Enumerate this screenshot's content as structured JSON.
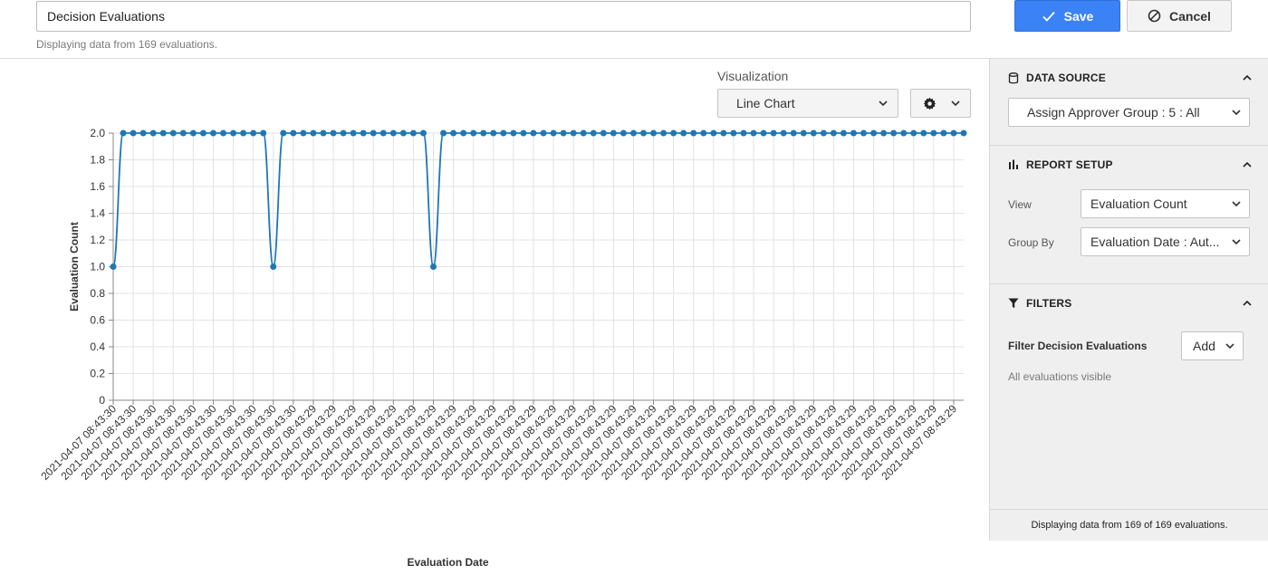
{
  "header": {
    "report_name": "Decision Evaluations",
    "subtitle": "Displaying data from 169 evaluations.",
    "save_label": "Save",
    "cancel_label": "Cancel"
  },
  "visualization": {
    "label": "Visualization",
    "selected": "Line Chart",
    "settings_icon": "gear-icon"
  },
  "sidebar": {
    "data_source": {
      "title": "DATA SOURCE",
      "icon": "database-icon",
      "selected": "Assign Approver Group : 5 : All"
    },
    "report_setup": {
      "title": "REPORT SETUP",
      "icon": "bar-chart-icon",
      "view_label": "View",
      "view_value": "Evaluation Count",
      "group_by_label": "Group By",
      "group_by_value": "Evaluation Date : Aut..."
    },
    "filters": {
      "title": "FILTERS",
      "icon": "filter-icon",
      "filter_label": "Filter Decision Evaluations",
      "add_label": "Add",
      "status": "All evaluations visible"
    },
    "footer": "Displaying data from 169 of 169 evaluations."
  },
  "chart_data": {
    "type": "line",
    "xlabel": "Evaluation Date",
    "ylabel": "Evaluation Count",
    "ylim": [
      0,
      2.0
    ],
    "yticks": [
      "0",
      "0.2",
      "0.4",
      "0.6",
      "0.8",
      "1.0",
      "1.2",
      "1.4",
      "1.6",
      "1.8",
      "2.0"
    ],
    "grid": true,
    "categories": [
      "2021-04-07 08:43:30",
      "2021-04-07 08:43:30",
      "2021-04-07 08:43:30",
      "2021-04-07 08:43:30",
      "2021-04-07 08:43:30",
      "2021-04-07 08:43:30",
      "2021-04-07 08:43:30",
      "2021-04-07 08:43:30",
      "2021-04-07 08:43:30",
      "2021-04-07 08:43:30",
      "2021-04-07 08:43:30",
      "2021-04-07 08:43:30",
      "2021-04-07 08:43:30",
      "2021-04-07 08:43:30",
      "2021-04-07 08:43:30",
      "2021-04-07 08:43:30",
      "2021-04-07 08:43:30",
      "2021-04-07 08:43:30",
      "2021-04-07 08:43:30",
      "2021-04-07 08:43:30",
      "2021-04-07 08:43:29",
      "2021-04-07 08:43:29",
      "2021-04-07 08:43:29",
      "2021-04-07 08:43:29",
      "2021-04-07 08:43:29",
      "2021-04-07 08:43:29",
      "2021-04-07 08:43:29",
      "2021-04-07 08:43:29",
      "2021-04-07 08:43:29",
      "2021-04-07 08:43:29",
      "2021-04-07 08:43:29",
      "2021-04-07 08:43:29",
      "2021-04-07 08:43:29",
      "2021-04-07 08:43:29",
      "2021-04-07 08:43:29",
      "2021-04-07 08:43:29",
      "2021-04-07 08:43:29",
      "2021-04-07 08:43:29",
      "2021-04-07 08:43:29",
      "2021-04-07 08:43:29",
      "2021-04-07 08:43:29",
      "2021-04-07 08:43:29",
      "2021-04-07 08:43:29",
      "2021-04-07 08:43:29",
      "2021-04-07 08:43:29",
      "2021-04-07 08:43:29",
      "2021-04-07 08:43:29",
      "2021-04-07 08:43:29",
      "2021-04-07 08:43:29",
      "2021-04-07 08:43:29",
      "2021-04-07 08:43:29",
      "2021-04-07 08:43:29",
      "2021-04-07 08:43:29",
      "2021-04-07 08:43:29",
      "2021-04-07 08:43:29",
      "2021-04-07 08:43:29",
      "2021-04-07 08:43:29",
      "2021-04-07 08:43:29",
      "2021-04-07 08:43:29",
      "2021-04-07 08:43:29",
      "2021-04-07 08:43:29",
      "2021-04-07 08:43:29",
      "2021-04-07 08:43:29",
      "2021-04-07 08:43:29",
      "2021-04-07 08:43:29",
      "2021-04-07 08:43:29",
      "2021-04-07 08:43:29",
      "2021-04-07 08:43:29",
      "2021-04-07 08:43:29",
      "2021-04-07 08:43:29",
      "2021-04-07 08:43:29",
      "2021-04-07 08:43:29",
      "2021-04-07 08:43:29",
      "2021-04-07 08:43:29",
      "2021-04-07 08:43:29",
      "2021-04-07 08:43:29",
      "2021-04-07 08:43:29",
      "2021-04-07 08:43:29",
      "2021-04-07 08:43:29",
      "2021-04-07 08:43:29",
      "2021-04-07 08:43:29",
      "2021-04-07 08:43:29",
      "2021-04-07 08:43:29",
      "2021-04-07 08:43:29",
      "2021-04-07 08:43:29",
      "2021-04-07 08:43:29"
    ],
    "values": [
      1,
      2,
      2,
      2,
      2,
      2,
      2,
      2,
      2,
      2,
      2,
      2,
      2,
      2,
      2,
      2,
      1,
      2,
      2,
      2,
      2,
      2,
      2,
      2,
      2,
      2,
      2,
      2,
      2,
      2,
      2,
      2,
      1,
      2,
      2,
      2,
      2,
      2,
      2,
      2,
      2,
      2,
      2,
      2,
      2,
      2,
      2,
      2,
      2,
      2,
      2,
      2,
      2,
      2,
      2,
      2,
      2,
      2,
      2,
      2,
      2,
      2,
      2,
      2,
      2,
      2,
      2,
      2,
      2,
      2,
      2,
      2,
      2,
      2,
      2,
      2,
      2,
      2,
      2,
      2,
      2,
      2,
      2,
      2,
      2,
      2
    ],
    "line_color": "#1f77b4"
  }
}
